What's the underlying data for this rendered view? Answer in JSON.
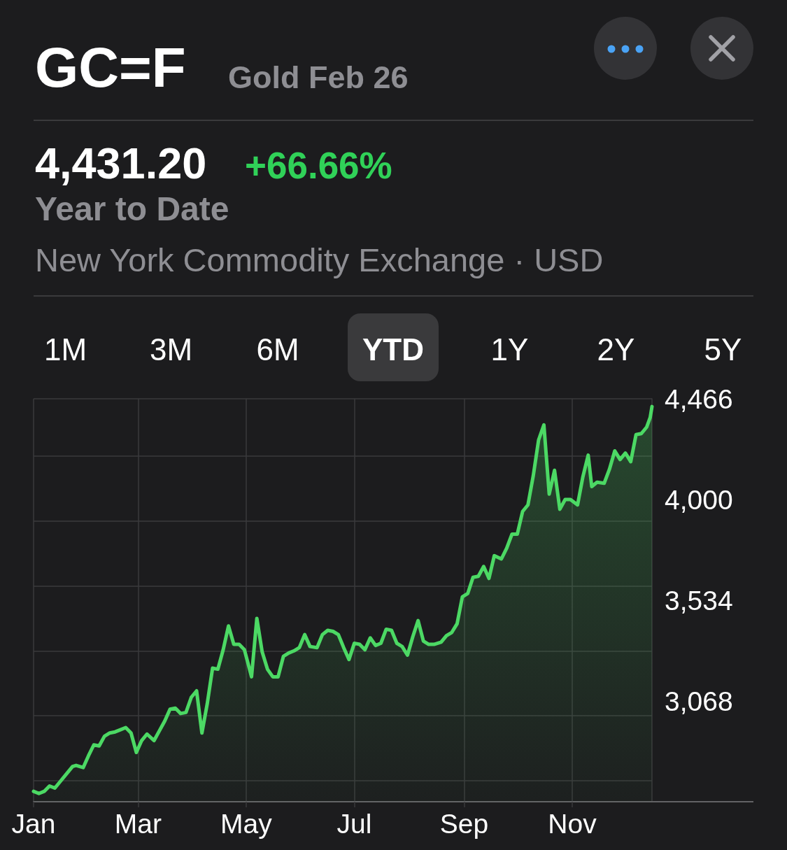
{
  "chart_data": {
    "type": "area",
    "title": "GC=F",
    "subtitle": "Gold Feb 26",
    "annotations": [
      "4,431.20",
      "+66.66%",
      "Year to Date",
      "New York Commodity Exchange · USD",
      "1M",
      "3M",
      "6M",
      "YTD",
      "1Y",
      "2Y",
      "5Y"
    ],
    "x": [
      "--01-01",
      "--01-04",
      "--01-07",
      "--01-10",
      "--01-13",
      "--01-16",
      "--01-20",
      "--01-23",
      "--01-25",
      "--01-29",
      "--02-01",
      "--02-04",
      "--02-07",
      "--02-10",
      "--02-13",
      "--02-16",
      "--02-19",
      "--02-22",
      "--02-25",
      "--02-28",
      "--03-03",
      "--03-06",
      "--03-10",
      "--03-13",
      "--03-16",
      "--03-19",
      "--03-22",
      "--03-25",
      "--03-28",
      "--03-31",
      "--04-03",
      "--04-06",
      "--04-09",
      "--04-12",
      "--04-15",
      "--04-18",
      "--04-21",
      "--04-24",
      "--04-27",
      "--04-30",
      "--05-04",
      "--05-07",
      "--05-10",
      "--05-13",
      "--05-16",
      "--05-19",
      "--05-22",
      "--05-25",
      "--05-28",
      "--05-31",
      "--06-03",
      "--06-06",
      "--06-10",
      "--06-13",
      "--06-16",
      "--06-19",
      "--06-22",
      "--06-25",
      "--06-28",
      "--07-01",
      "--07-04",
      "--07-07",
      "--07-10",
      "--07-13",
      "--07-16",
      "--07-19",
      "--07-22",
      "--07-25",
      "--07-28",
      "--07-31",
      "--08-03",
      "--08-06",
      "--08-09",
      "--08-12",
      "--08-15",
      "--08-19",
      "--08-22",
      "--08-25",
      "--08-28",
      "--08-31",
      "--09-03",
      "--09-06",
      "--09-09",
      "--09-12",
      "--09-15",
      "--09-18",
      "--09-22",
      "--09-25",
      "--09-28",
      "--10-01",
      "--10-04",
      "--10-07",
      "--10-10",
      "--10-13",
      "--10-16",
      "--10-19",
      "--10-22",
      "--10-25",
      "--10-28",
      "--10-31",
      "--11-04",
      "--11-07",
      "--11-10",
      "--11-12",
      "--11-15",
      "--11-19",
      "--11-22",
      "--11-25",
      "--11-28",
      "--12-01",
      "--12-04",
      "--12-07",
      "--12-10",
      "--12-13",
      "--12-15",
      "--12-16"
    ],
    "values": [
      2650,
      2640,
      2650,
      2675,
      2665,
      2695,
      2735,
      2765,
      2770,
      2760,
      2815,
      2865,
      2860,
      2905,
      2920,
      2925,
      2935,
      2945,
      2920,
      2830,
      2885,
      2915,
      2885,
      2930,
      2975,
      3030,
      3035,
      3010,
      3015,
      3085,
      3115,
      2920,
      3055,
      3220,
      3215,
      3305,
      3415,
      3330,
      3330,
      3305,
      3180,
      3450,
      3295,
      3215,
      3180,
      3180,
      3275,
      3290,
      3300,
      3315,
      3375,
      3320,
      3315,
      3375,
      3395,
      3390,
      3375,
      3315,
      3260,
      3335,
      3330,
      3305,
      3360,
      3325,
      3335,
      3400,
      3395,
      3335,
      3320,
      3280,
      3365,
      3440,
      3345,
      3330,
      3330,
      3340,
      3370,
      3385,
      3425,
      3550,
      3565,
      3640,
      3645,
      3690,
      3635,
      3740,
      3725,
      3775,
      3840,
      3840,
      3945,
      3975,
      4110,
      4275,
      4345,
      4025,
      4135,
      3955,
      4000,
      4000,
      3975,
      4105,
      4205,
      4060,
      4080,
      4075,
      4140,
      4225,
      4185,
      4215,
      4175,
      4300,
      4305,
      4335,
      4380,
      4430
    ],
    "color": "#4cd964",
    "xlim": [
      "--01-01",
      "--12-16"
    ],
    "xticks": [
      {
        "value": "--01-01",
        "label": "Jan"
      },
      {
        "value": "--03-01",
        "label": "Mar"
      },
      {
        "value": "--05-01",
        "label": "May"
      },
      {
        "value": "--07-01",
        "label": "Jul"
      },
      {
        "value": "--09-01",
        "label": "Sep"
      },
      {
        "value": "--11-01",
        "label": "Nov"
      }
    ],
    "ylim": [
      2602,
      4466
    ],
    "yticks": [
      {
        "value": 3068,
        "label": "3,068"
      },
      {
        "value": 3534,
        "label": "3,534"
      },
      {
        "value": 4000,
        "label": "4,000"
      },
      {
        "value": 4466,
        "label": "4,466"
      }
    ],
    "grid": true
  }
}
